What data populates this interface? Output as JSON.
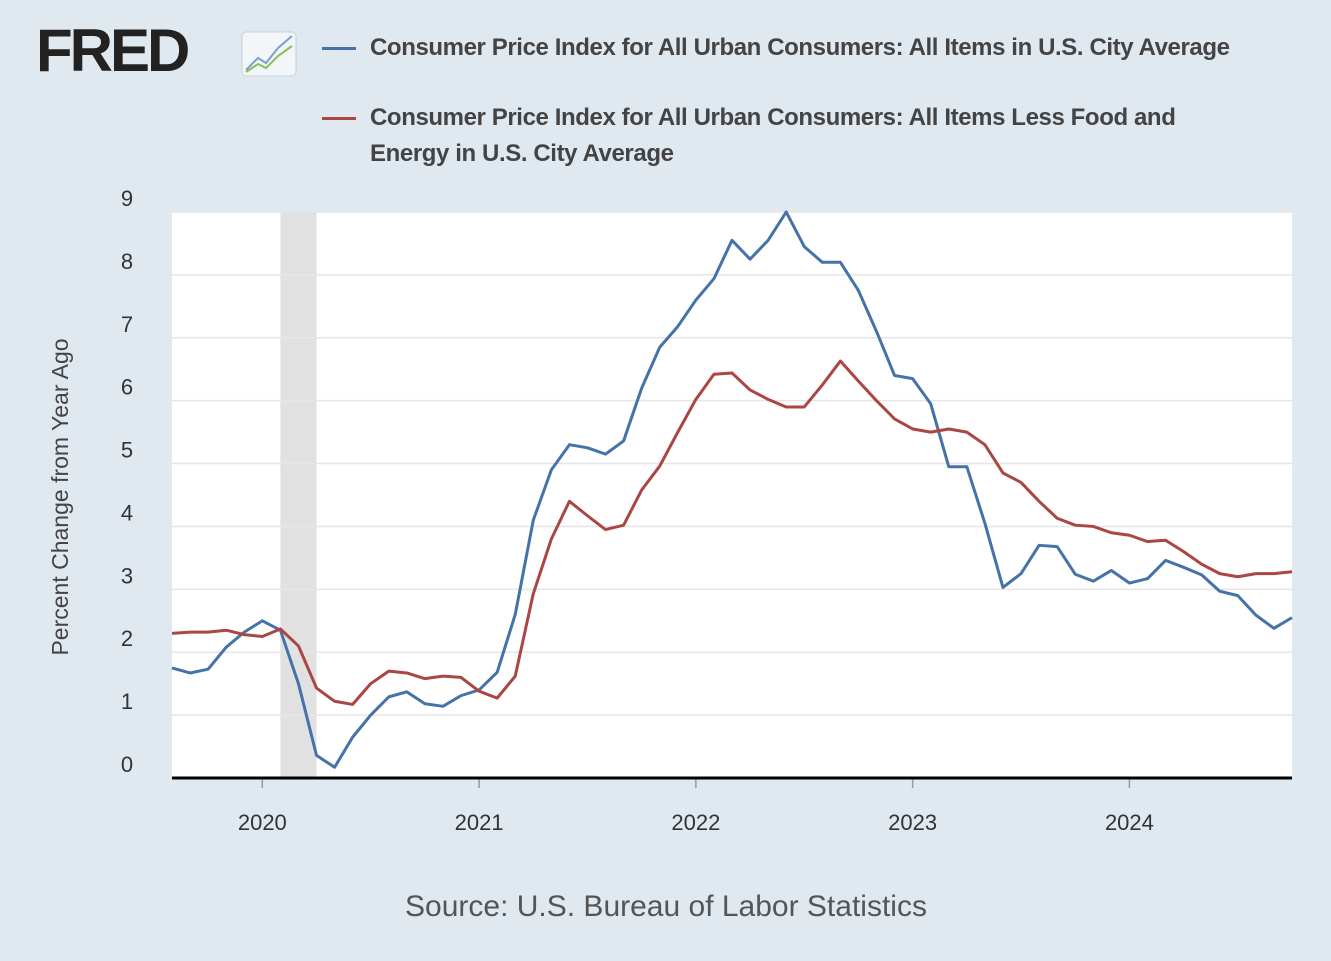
{
  "chart_data": {
    "type": "line",
    "logo": "FRED",
    "ylabel": "Percent Change from Year Ago",
    "source": "Source: U.S. Bureau of Labor Statistics",
    "x": [
      "2019-08",
      "2019-09",
      "2019-10",
      "2019-11",
      "2019-12",
      "2020-01",
      "2020-02",
      "2020-03",
      "2020-04",
      "2020-05",
      "2020-06",
      "2020-07",
      "2020-08",
      "2020-09",
      "2020-10",
      "2020-11",
      "2020-12",
      "2021-01",
      "2021-02",
      "2021-03",
      "2021-04",
      "2021-05",
      "2021-06",
      "2021-07",
      "2021-08",
      "2021-09",
      "2021-10",
      "2021-11",
      "2021-12",
      "2022-01",
      "2022-02",
      "2022-03",
      "2022-04",
      "2022-05",
      "2022-06",
      "2022-07",
      "2022-08",
      "2022-09",
      "2022-10",
      "2022-11",
      "2022-12",
      "2023-01",
      "2023-02",
      "2023-03",
      "2023-04",
      "2023-05",
      "2023-06",
      "2023-07",
      "2023-08",
      "2023-09",
      "2023-10",
      "2023-11",
      "2023-12",
      "2024-01",
      "2024-02",
      "2024-03",
      "2024-04",
      "2024-05",
      "2024-06",
      "2024-07",
      "2024-08",
      "2024-09",
      "2024-10"
    ],
    "series": [
      {
        "name": "Consumer Price Index for All Urban Consumers: All Items in U.S. City Average",
        "color": "#4572a7",
        "values": [
          1.75,
          1.67,
          1.73,
          2.08,
          2.32,
          2.5,
          2.35,
          1.5,
          0.36,
          0.17,
          0.65,
          1.0,
          1.29,
          1.37,
          1.18,
          1.14,
          1.31,
          1.4,
          1.68,
          2.6,
          4.1,
          4.9,
          5.3,
          5.25,
          5.15,
          5.36,
          6.2,
          6.85,
          7.18,
          7.6,
          7.94,
          8.55,
          8.25,
          8.55,
          9.0,
          8.45,
          8.2,
          8.2,
          7.75,
          7.1,
          6.4,
          6.35,
          5.95,
          4.95,
          4.95,
          4.05,
          3.03,
          3.25,
          3.7,
          3.68,
          3.24,
          3.13,
          3.3,
          3.1,
          3.17,
          3.46,
          3.35,
          3.23,
          2.97,
          2.9,
          2.59,
          2.38,
          2.55
        ]
      },
      {
        "name": "Consumer Price Index for All Urban Consumers: All Items Less Food and Energy in U.S. City Average",
        "color": "#aa4643",
        "values": [
          2.3,
          2.32,
          2.32,
          2.35,
          2.28,
          2.25,
          2.37,
          2.1,
          1.43,
          1.22,
          1.17,
          1.5,
          1.7,
          1.67,
          1.58,
          1.62,
          1.6,
          1.38,
          1.27,
          1.62,
          2.93,
          3.8,
          4.4,
          4.17,
          3.95,
          4.02,
          4.58,
          4.96,
          5.5,
          6.02,
          6.42,
          6.44,
          6.17,
          6.02,
          5.9,
          5.9,
          6.25,
          6.63,
          6.31,
          6.0,
          5.71,
          5.55,
          5.5,
          5.55,
          5.5,
          5.3,
          4.85,
          4.7,
          4.4,
          4.13,
          4.02,
          4.0,
          3.9,
          3.86,
          3.76,
          3.78,
          3.6,
          3.4,
          3.25,
          3.2,
          3.25,
          3.25,
          3.28
        ]
      }
    ],
    "recession": [
      "2020-02",
      "2020-04"
    ],
    "recession_color": "#e1e1e1",
    "xlim": [
      "2019-08",
      "2024-10"
    ],
    "xticks": [
      2020,
      2021,
      2022,
      2023,
      2024
    ],
    "ylim": [
      0,
      9
    ],
    "yticks": [
      0,
      1,
      2,
      3,
      4,
      5,
      6,
      7,
      8,
      9
    ],
    "grid": true
  }
}
